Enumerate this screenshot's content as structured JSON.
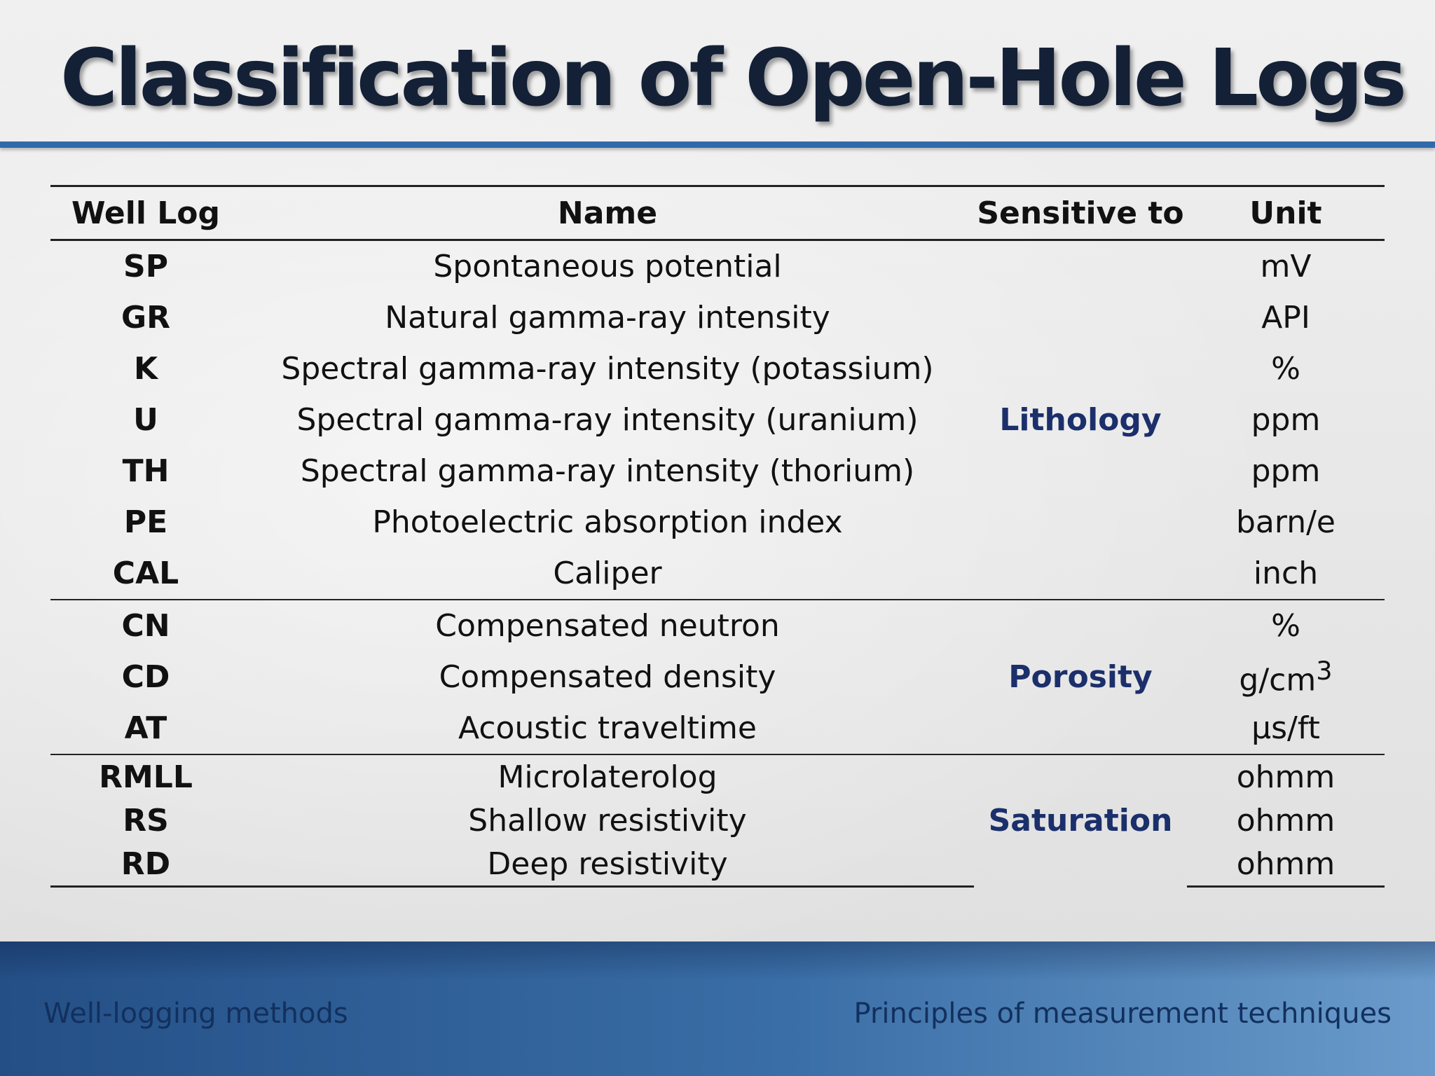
{
  "title": "Classification of Open-Hole Logs",
  "table": {
    "headers": [
      "Well Log",
      "Name",
      "Sensitive to",
      "Unit"
    ],
    "lithology": {
      "label": "Lithology",
      "rows": [
        {
          "code": "SP",
          "name": "Spontaneous potential",
          "unit": "mV"
        },
        {
          "code": "GR",
          "name": "Natural gamma-ray intensity",
          "unit": "API"
        },
        {
          "code": "K",
          "name": "Spectral gamma-ray intensity (potassium)",
          "unit": "%"
        },
        {
          "code": "U",
          "name": "Spectral gamma-ray intensity (uranium)",
          "unit": "ppm"
        },
        {
          "code": "TH",
          "name": "Spectral gamma-ray intensity (thorium)",
          "unit": "ppm"
        },
        {
          "code": "PE",
          "name": "Photoelectric absorption index",
          "unit": "barn/e"
        },
        {
          "code": "CAL",
          "name": "Caliper",
          "unit": "inch"
        }
      ]
    },
    "porosity": {
      "label": "Porosity",
      "rows": [
        {
          "code": "CN",
          "name": "Compensated neutron",
          "unit": "%"
        },
        {
          "code": "CD",
          "name": "Compensated density",
          "unit": "g/cm",
          "unit_sup": "3"
        },
        {
          "code": "AT",
          "name": "Acoustic traveltime",
          "unit": "µs/ft"
        }
      ]
    },
    "saturation": {
      "label": "Saturation",
      "rows": [
        {
          "code": "RMLL",
          "name": "Microlaterolog",
          "unit": "ohmm"
        },
        {
          "code": "RS",
          "name": "Shallow resistivity",
          "unit": "ohmm"
        },
        {
          "code": "RD",
          "name": "Deep resistivity",
          "unit": "ohmm"
        }
      ]
    }
  },
  "footer": {
    "left": "Well-logging methods",
    "right": "Principles of measurement techniques"
  },
  "colors": {
    "title_text": "#142036",
    "accent_rule": "#2f6aaa",
    "sensitivity_text": "#1b2f6b",
    "footer_band": "#3a6ea6"
  }
}
